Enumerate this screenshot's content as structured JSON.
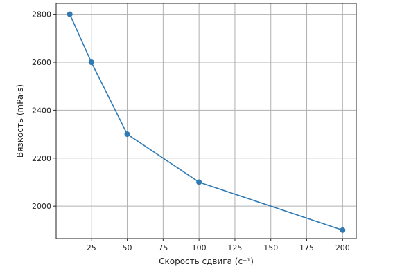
{
  "chart_data": {
    "type": "line",
    "xlabel": "Скорость сдвига (с⁻¹)",
    "ylabel": "Вязкость (mPa·s)",
    "xlim": [
      0.5,
      209.5
    ],
    "ylim": [
      1865,
      2845
    ],
    "xticks": [
      25,
      50,
      75,
      100,
      125,
      150,
      175,
      200
    ],
    "yticks": [
      2000,
      2200,
      2400,
      2600,
      2800
    ],
    "grid": true,
    "series": [
      {
        "x": [
          10,
          25,
          50,
          100,
          200
        ],
        "y": [
          2800,
          2600,
          2300,
          2100,
          1900
        ],
        "color": "#2f7ab5",
        "marker": "circle"
      }
    ]
  }
}
